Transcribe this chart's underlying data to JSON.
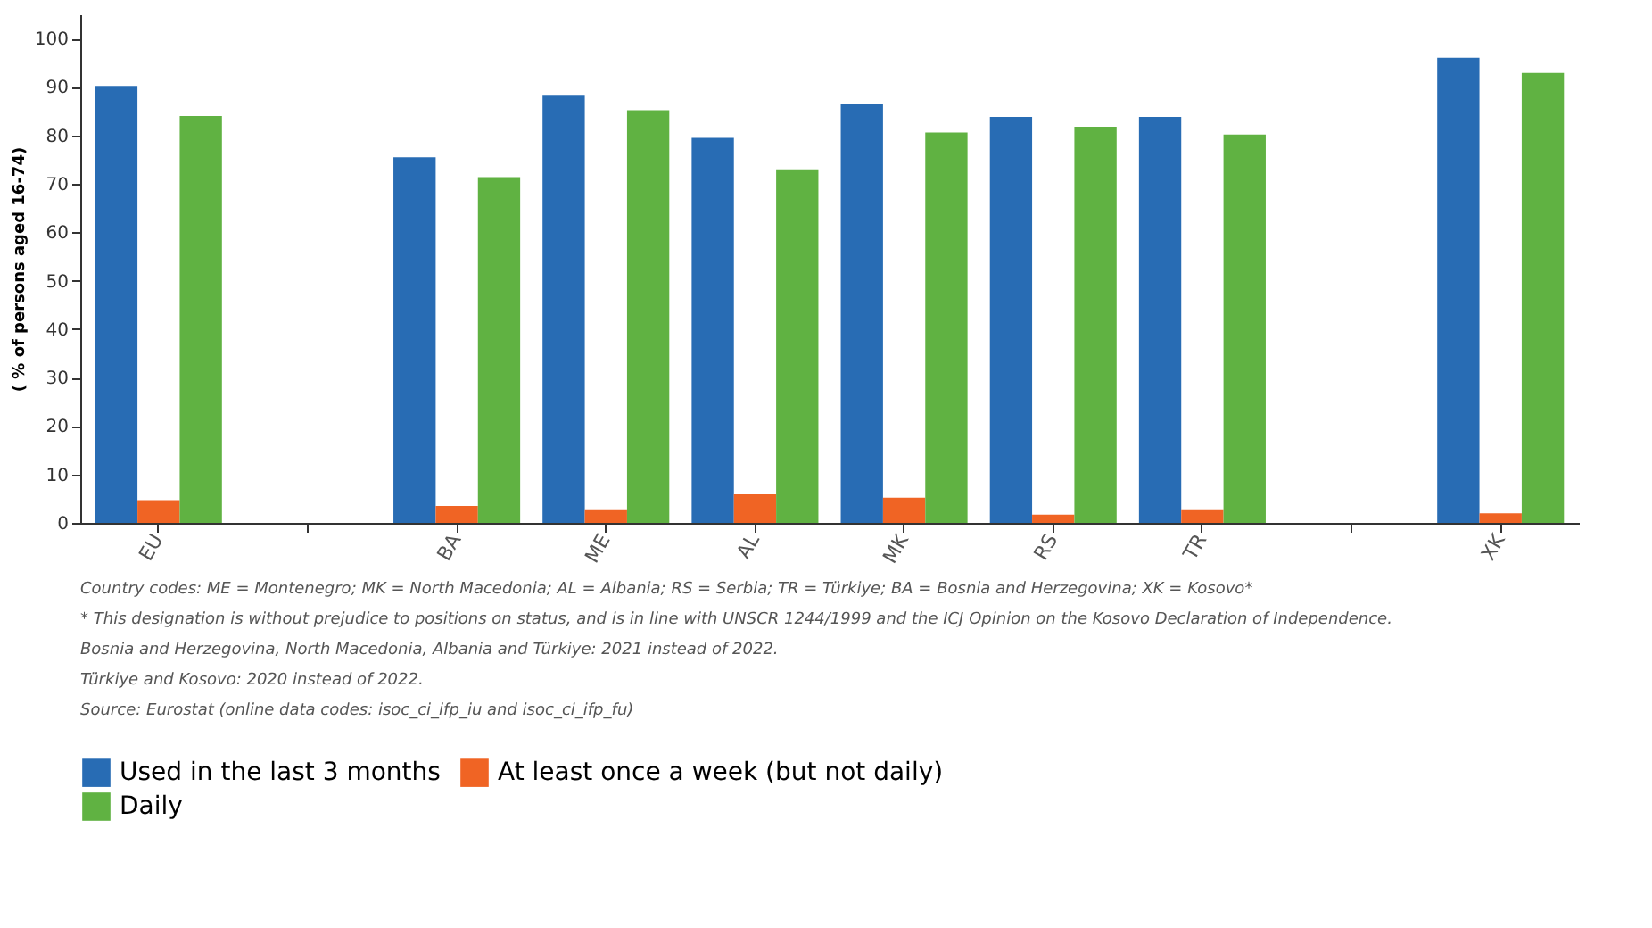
{
  "chart_data": {
    "type": "bar",
    "ylabel": "( % of persons aged 16-74)",
    "categories": [
      "EU",
      null,
      "BA",
      "ME",
      "AL",
      "MK",
      "RS",
      "TR",
      null,
      "XK"
    ],
    "series": [
      {
        "name": "Used in the last 3 months",
        "color": "#286cb4",
        "values": [
          90.2,
          null,
          75.5,
          88.2,
          79.5,
          86.5,
          83.8,
          83.8,
          null,
          96.0
        ]
      },
      {
        "name": "At least once a week (but not daily)",
        "color": "#f06424",
        "values": [
          4.7,
          null,
          3.5,
          2.8,
          5.9,
          5.2,
          1.7,
          2.8,
          null,
          2.0
        ]
      },
      {
        "name": "Daily",
        "color": "#60b242",
        "values": [
          84.0,
          null,
          71.4,
          85.2,
          73.0,
          80.6,
          81.8,
          80.2,
          null,
          92.9
        ]
      }
    ],
    "ylim": [
      0,
      105
    ],
    "yticks": [
      0,
      10,
      20,
      30,
      40,
      50,
      60,
      70,
      80,
      90,
      100
    ],
    "grid": false,
    "legend": "bottom",
    "annotations": [
      "Country codes: ME = Montenegro; MK = North Macedonia; AL = Albania; RS = Serbia; TR = Türkiye; BA = Bosnia and Herzegovina; XK = Kosovo*",
      "* This designation is without prejudice to positions on status, and is in line with UNSCR 1244/1999 and the ICJ Opinion on the Kosovo Declaration of Independence.",
      "Bosnia and Herzegovina, North Macedonia, Albania and Türkiye: 2021 instead of 2022.",
      "Türkiye and Kosovo: 2020 instead of 2022.",
      "Source: Eurostat (online data codes: isoc_ci_ifp_iu and isoc_ci_ifp_fu)"
    ]
  }
}
